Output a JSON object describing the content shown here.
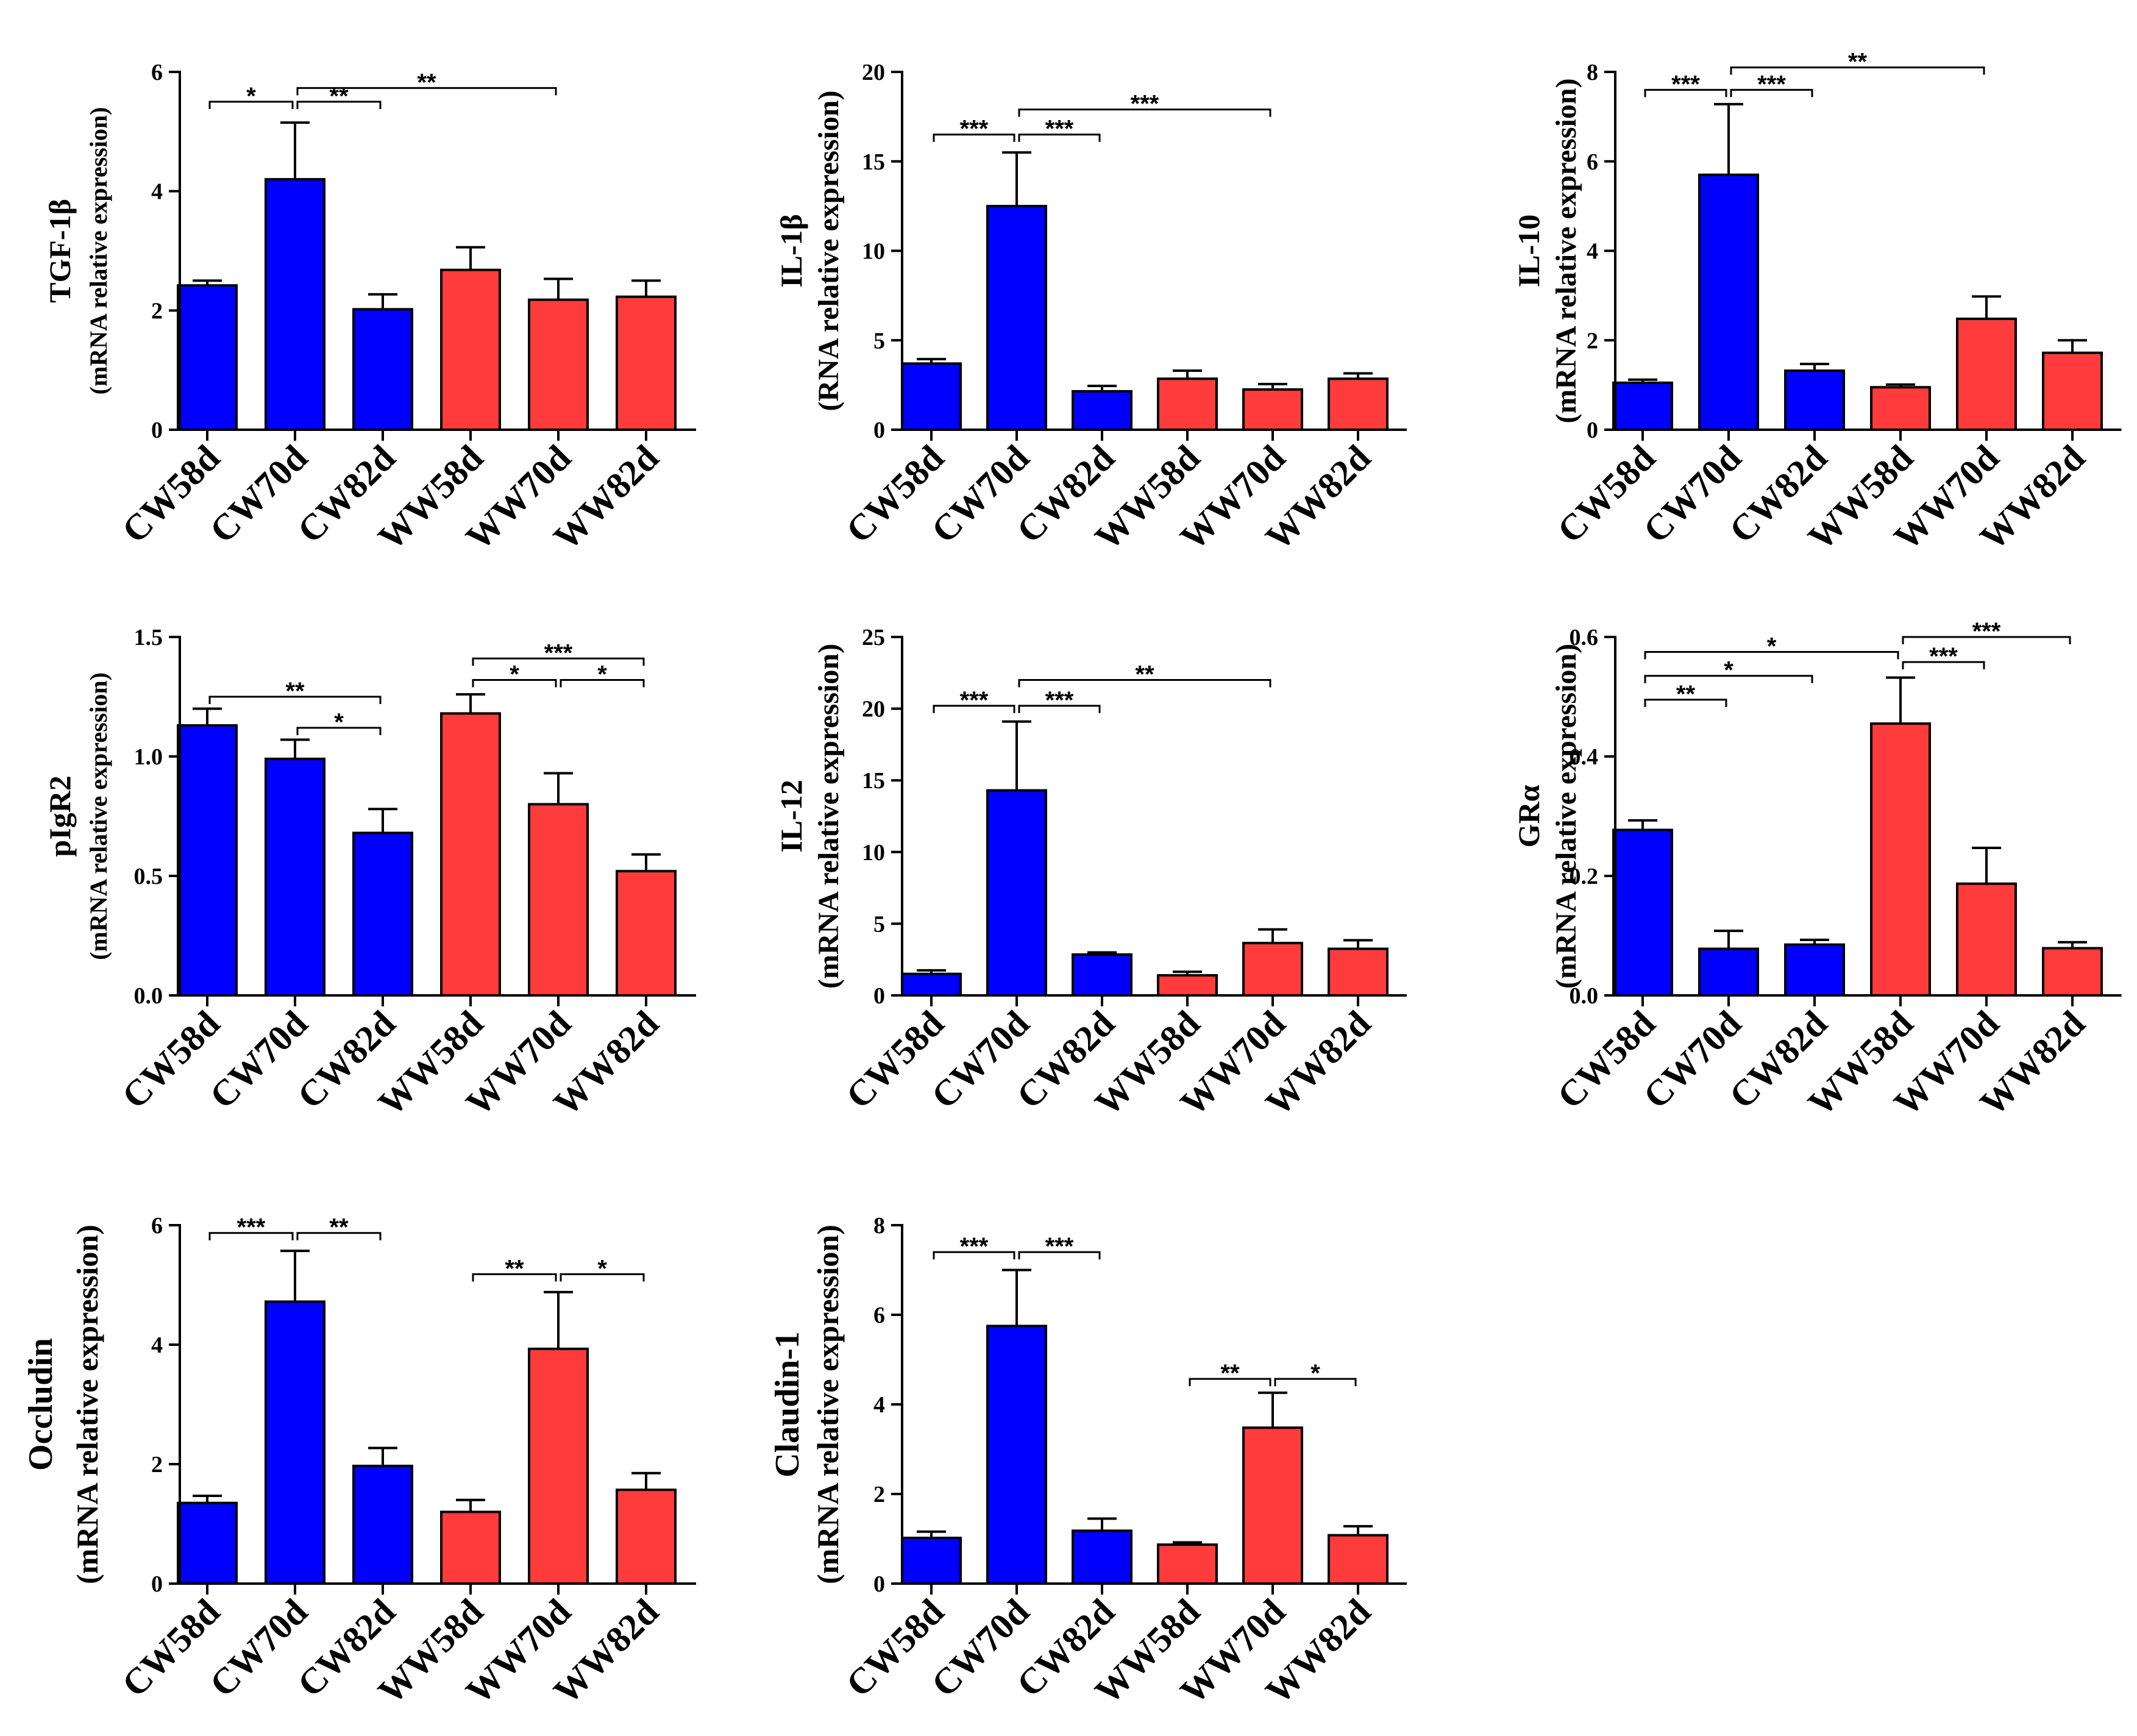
{
  "figure_title": "",
  "colors": {
    "cw": "#0000ff",
    "ww": "#ff3b3b",
    "axis": "#000000"
  },
  "chart_data": [
    {
      "type": "bar",
      "title": "",
      "ylabel_main": "TGF-1β",
      "ylabel_sub": "(mRNA relative expression)",
      "categories": [
        "CW58d",
        "CW70d",
        "CW82d",
        "WW58d",
        "WW70d",
        "WW82d"
      ],
      "values": [
        2.42,
        4.2,
        2.02,
        2.68,
        2.18,
        2.23
      ],
      "errors": [
        0.08,
        0.95,
        0.25,
        0.38,
        0.35,
        0.27
      ],
      "ylim": [
        0,
        6
      ],
      "yticks": [
        0,
        2,
        4,
        6
      ],
      "ytick_labels": [
        "0",
        "2",
        "4",
        "6"
      ],
      "significance": [
        {
          "from": 0,
          "to": 1,
          "label": "*",
          "y": 5.5
        },
        {
          "from": 1,
          "to": 2,
          "label": "**",
          "y": 5.5
        },
        {
          "from": 1,
          "to": 4,
          "label": "**",
          "y": 5.73
        }
      ]
    },
    {
      "type": "bar",
      "title": "",
      "ylabel_main": "IL-1β",
      "ylabel_sub": "(RNA relative expression)",
      "categories": [
        "CW58d",
        "CW70d",
        "CW82d",
        "WW58d",
        "WW70d",
        "WW82d"
      ],
      "values": [
        3.7,
        12.5,
        2.15,
        2.85,
        2.25,
        2.85
      ],
      "errors": [
        0.25,
        3.0,
        0.3,
        0.45,
        0.3,
        0.3
      ],
      "ylim": [
        0,
        20
      ],
      "yticks": [
        0,
        5,
        10,
        15,
        20
      ],
      "ytick_labels": [
        "0",
        "5",
        "10",
        "15",
        "20"
      ],
      "significance": [
        {
          "from": 0,
          "to": 1,
          "label": "***",
          "y": 16.5
        },
        {
          "from": 1,
          "to": 2,
          "label": "***",
          "y": 16.5
        },
        {
          "from": 1,
          "to": 4,
          "label": "***",
          "y": 17.9
        }
      ]
    },
    {
      "type": "bar",
      "title": "",
      "ylabel_main": "IL-10",
      "ylabel_sub": "(mRNA relative expression)",
      "categories": [
        "CW58d",
        "CW70d",
        "CW82d",
        "WW58d",
        "WW70d",
        "WW82d"
      ],
      "values": [
        1.05,
        5.7,
        1.32,
        0.95,
        2.48,
        1.72
      ],
      "errors": [
        0.07,
        1.58,
        0.15,
        0.06,
        0.5,
        0.28
      ],
      "ylim": [
        0,
        8
      ],
      "yticks": [
        0,
        2,
        4,
        6,
        8
      ],
      "ytick_labels": [
        "0",
        "2",
        "4",
        "6",
        "8"
      ],
      "significance": [
        {
          "from": 0,
          "to": 1,
          "label": "***",
          "y": 7.6
        },
        {
          "from": 1,
          "to": 2,
          "label": "***",
          "y": 7.6
        },
        {
          "from": 1,
          "to": 4,
          "label": "**",
          "y": 8.1
        }
      ]
    },
    {
      "type": "bar",
      "title": "",
      "ylabel_main": "pIgR2",
      "ylabel_sub": "(mRNA relative expression)",
      "categories": [
        "CW58d",
        "CW70d",
        "CW82d",
        "WW58d",
        "WW70d",
        "WW82d"
      ],
      "values": [
        1.13,
        0.99,
        0.68,
        1.18,
        0.8,
        0.52
      ],
      "errors": [
        0.07,
        0.08,
        0.1,
        0.08,
        0.13,
        0.07
      ],
      "ylim": [
        0,
        1.5
      ],
      "yticks": [
        0,
        0.5,
        1.0,
        1.5
      ],
      "ytick_labels": [
        "0.0",
        "0.5",
        "1.0",
        "1.5"
      ],
      "significance": [
        {
          "from": 0,
          "to": 2,
          "label": "**",
          "y": 1.25
        },
        {
          "from": 1,
          "to": 2,
          "label": "*",
          "y": 1.12
        },
        {
          "from": 3,
          "to": 4,
          "label": "*",
          "y": 1.32
        },
        {
          "from": 4,
          "to": 5,
          "label": "*",
          "y": 1.32
        },
        {
          "from": 3,
          "to": 5,
          "label": "***",
          "y": 1.41
        }
      ]
    },
    {
      "type": "bar",
      "title": "",
      "ylabel_main": "IL-12",
      "ylabel_sub": "(mRNA relative expression)",
      "categories": [
        "CW58d",
        "CW70d",
        "CW82d",
        "WW58d",
        "WW70d",
        "WW82d"
      ],
      "values": [
        1.5,
        14.3,
        2.85,
        1.4,
        3.65,
        3.25
      ],
      "errors": [
        0.25,
        4.8,
        0.15,
        0.25,
        0.95,
        0.6
      ],
      "ylim": [
        0,
        25
      ],
      "yticks": [
        0,
        5,
        10,
        15,
        20,
        25
      ],
      "ytick_labels": [
        "0",
        "5",
        "10",
        "15",
        "20",
        "25"
      ],
      "significance": [
        {
          "from": 0,
          "to": 1,
          "label": "***",
          "y": 20.2
        },
        {
          "from": 1,
          "to": 2,
          "label": "***",
          "y": 20.2
        },
        {
          "from": 1,
          "to": 4,
          "label": "**",
          "y": 22.0
        }
      ]
    },
    {
      "type": "bar",
      "title": "",
      "ylabel_main": "GRα",
      "ylabel_sub": "(mRNA relative expression)",
      "categories": [
        "CW58d",
        "CW70d",
        "CW82d",
        "WW58d",
        "WW70d",
        "WW82d"
      ],
      "values": [
        0.277,
        0.078,
        0.085,
        0.455,
        0.187,
        0.079
      ],
      "errors": [
        0.016,
        0.03,
        0.008,
        0.077,
        0.06,
        0.01
      ],
      "ylim": [
        0,
        0.6
      ],
      "yticks": [
        0,
        0.2,
        0.4,
        0.6
      ],
      "ytick_labels": [
        "0.0",
        "0.2",
        "0.4",
        "0.6"
      ],
      "significance": [
        {
          "from": 0,
          "to": 1,
          "label": "**",
          "y": 0.495
        },
        {
          "from": 0,
          "to": 2,
          "label": "*",
          "y": 0.535
        },
        {
          "from": 0,
          "to": 3,
          "label": "*",
          "y": 0.575
        },
        {
          "from": 3,
          "to": 4,
          "label": "***",
          "y": 0.558
        },
        {
          "from": 3,
          "to": 5,
          "label": "***",
          "y": 0.6
        }
      ]
    },
    {
      "type": "bar",
      "title": "",
      "ylabel_main": "Occludin",
      "ylabel_sub": "(mRNA relative expression)",
      "categories": [
        "CW58d",
        "CW70d",
        "CW82d",
        "WW58d",
        "WW70d",
        "WW82d"
      ],
      "values": [
        1.35,
        4.72,
        1.97,
        1.2,
        3.93,
        1.57
      ],
      "errors": [
        0.12,
        0.85,
        0.3,
        0.2,
        0.95,
        0.28
      ],
      "ylim": [
        0,
        6
      ],
      "yticks": [
        0,
        2,
        4,
        6
      ],
      "ytick_labels": [
        "0",
        "2",
        "4",
        "6"
      ],
      "significance": [
        {
          "from": 0,
          "to": 1,
          "label": "***",
          "y": 5.87
        },
        {
          "from": 1,
          "to": 2,
          "label": "**",
          "y": 5.87
        },
        {
          "from": 3,
          "to": 4,
          "label": "**",
          "y": 5.18
        },
        {
          "from": 4,
          "to": 5,
          "label": "*",
          "y": 5.18
        }
      ]
    },
    {
      "type": "bar",
      "title": "",
      "ylabel_main": "Claudin-1",
      "ylabel_sub": "(mRNA relative expression)",
      "categories": [
        "CW58d",
        "CW70d",
        "CW82d",
        "WW58d",
        "WW70d",
        "WW82d"
      ],
      "values": [
        1.02,
        5.75,
        1.18,
        0.87,
        3.48,
        1.08
      ],
      "errors": [
        0.14,
        1.25,
        0.27,
        0.05,
        0.78,
        0.2
      ],
      "ylim": [
        0,
        8
      ],
      "yticks": [
        0,
        2,
        4,
        6,
        8
      ],
      "ytick_labels": [
        "0",
        "2",
        "4",
        "6",
        "8"
      ],
      "significance": [
        {
          "from": 0,
          "to": 1,
          "label": "***",
          "y": 7.4
        },
        {
          "from": 1,
          "to": 2,
          "label": "***",
          "y": 7.4
        },
        {
          "from": 3,
          "to": 4,
          "label": "**",
          "y": 4.57
        },
        {
          "from": 4,
          "to": 5,
          "label": "*",
          "y": 4.57
        }
      ]
    }
  ]
}
